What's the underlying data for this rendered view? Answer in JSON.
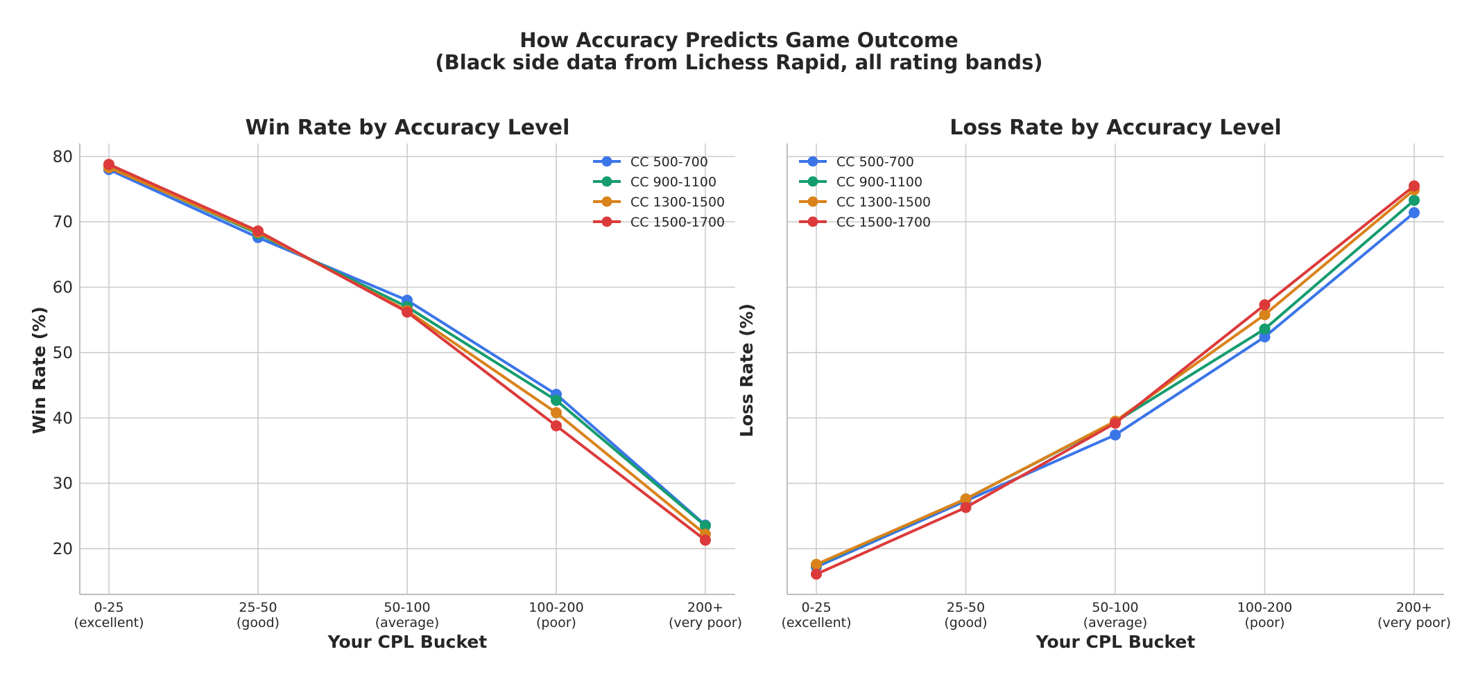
{
  "figure": {
    "title_line1": "How Accuracy Predicts Game Outcome",
    "title_line2": "(Black side data from Lichess Rapid, all rating bands)"
  },
  "colors": {
    "CC 500-700": "#3b75e8",
    "CC 900-1100": "#159c6f",
    "CC 1300-1500": "#d9821a",
    "CC 1500-1700": "#dc3a3a",
    "grid": "#cccccc",
    "axes": "#bdbdbd",
    "text": "#262626"
  },
  "chart_data": [
    {
      "type": "line",
      "title": "Win Rate by Accuracy Level",
      "xlabel": "Your CPL Bucket",
      "ylabel": "Win Rate (%)",
      "categories": [
        "0-25\n(excellent)",
        "25-50\n(good)",
        "50-100\n(average)",
        "100-200\n(poor)",
        "200+\n(very poor)"
      ],
      "ylim": [
        13,
        82
      ],
      "yticks": [
        20,
        30,
        40,
        50,
        60,
        70,
        80
      ],
      "grid": true,
      "legend_position": "top-right",
      "series": [
        {
          "name": "CC 500-700",
          "values": [
            78.0,
            67.6,
            58.0,
            43.6,
            23.6
          ]
        },
        {
          "name": "CC 900-1100",
          "values": [
            78.4,
            68.2,
            57.0,
            42.7,
            23.5
          ]
        },
        {
          "name": "CC 1300-1500",
          "values": [
            78.3,
            68.4,
            56.4,
            40.8,
            22.2
          ]
        },
        {
          "name": "CC 1500-1700",
          "values": [
            78.8,
            68.6,
            56.2,
            38.8,
            21.3
          ]
        }
      ]
    },
    {
      "type": "line",
      "title": "Loss Rate by Accuracy Level",
      "xlabel": "Your CPL Bucket",
      "ylabel": "Loss Rate (%)",
      "categories": [
        "0-25\n(excellent)",
        "25-50\n(good)",
        "50-100\n(average)",
        "100-200\n(poor)",
        "200+\n(very poor)"
      ],
      "ylim": [
        13,
        82
      ],
      "yticks": [
        20,
        30,
        40,
        50,
        60,
        70,
        80
      ],
      "show_ytick_labels": false,
      "grid": true,
      "legend_position": "top-left",
      "series": [
        {
          "name": "CC 500-700",
          "values": [
            17.2,
            27.3,
            37.4,
            52.4,
            71.4
          ]
        },
        {
          "name": "CC 900-1100",
          "values": [
            17.5,
            27.6,
            39.4,
            53.6,
            73.3
          ]
        },
        {
          "name": "CC 1300-1500",
          "values": [
            17.6,
            27.6,
            39.5,
            55.8,
            74.9
          ]
        },
        {
          "name": "CC 1500-1700",
          "values": [
            16.1,
            26.3,
            39.2,
            57.3,
            75.5
          ]
        }
      ]
    }
  ]
}
